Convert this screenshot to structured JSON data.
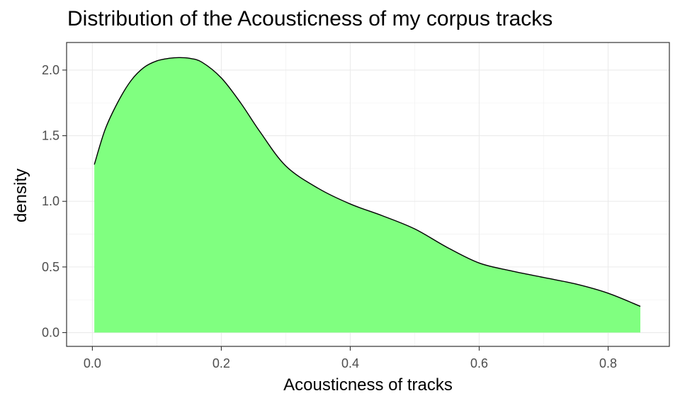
{
  "chart_data": {
    "type": "area",
    "title": "Distribution of the Acousticness of my corpus tracks",
    "xlabel": "Acousticness of tracks",
    "ylabel": "density",
    "xlim": [
      -0.04,
      0.895
    ],
    "ylim": [
      -0.105,
      2.21
    ],
    "x_ticks": [
      0.0,
      0.2,
      0.4,
      0.6,
      0.8
    ],
    "x_tick_labels": [
      "0.0",
      "0.2",
      "0.4",
      "0.6",
      "0.8"
    ],
    "y_ticks": [
      0.0,
      0.5,
      1.0,
      1.5,
      2.0
    ],
    "y_tick_labels": [
      "0.0",
      "0.5",
      "1.0",
      "1.5",
      "2.0"
    ],
    "grid": true,
    "fill_color": "#80FF80",
    "line_color": "#000000",
    "x": [
      0.003,
      0.02,
      0.04,
      0.06,
      0.08,
      0.1,
      0.12,
      0.134,
      0.15,
      0.17,
      0.2,
      0.23,
      0.26,
      0.3,
      0.35,
      0.4,
      0.45,
      0.5,
      0.55,
      0.6,
      0.65,
      0.7,
      0.75,
      0.8,
      0.85
    ],
    "y": [
      1.28,
      1.55,
      1.76,
      1.92,
      2.02,
      2.07,
      2.09,
      2.095,
      2.09,
      2.06,
      1.94,
      1.75,
      1.53,
      1.27,
      1.1,
      0.98,
      0.89,
      0.79,
      0.65,
      0.53,
      0.47,
      0.42,
      0.37,
      0.3,
      0.2
    ]
  }
}
